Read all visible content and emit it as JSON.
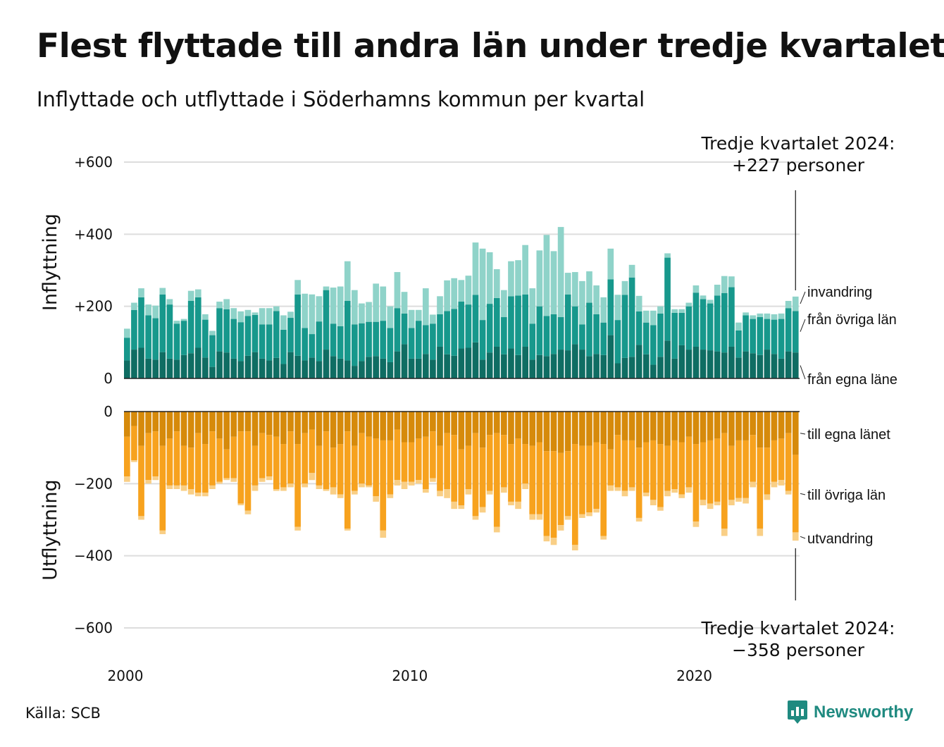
{
  "header": {
    "title": "Flest flyttade till andra län under tredje kvartalet",
    "subtitle": "Inflyttade och utflyttade i Söderhamns kommun per kvartal"
  },
  "footer": {
    "source": "Källa: SCB",
    "brand": "Newsworthy"
  },
  "colors": {
    "in_own": "#0f6d63",
    "in_other": "#17988c",
    "in_immigration": "#8fd3c9",
    "out_own": "#d68a0b",
    "out_other": "#f7a21e",
    "out_emigration": "#f9cf86",
    "brand": "#1f8a80"
  },
  "chart_data": {
    "type": "bar",
    "stacked": true,
    "start_year": 2000,
    "quarters_per_year": 4,
    "x_ticks": [
      "2000",
      "2010",
      "2020"
    ],
    "in_panel": {
      "ylabel": "Inflyttning",
      "ylim": [
        0,
        600
      ],
      "y_ticks": [
        "0",
        "+200",
        "+400",
        "+600"
      ],
      "callout": [
        "Tredje kvartalet 2024:",
        "+227 personer"
      ],
      "series": [
        {
          "name": "från egna läne",
          "values": [
            50,
            80,
            85,
            55,
            52,
            73,
            55,
            52,
            65,
            70,
            85,
            58,
            32,
            75,
            72,
            55,
            48,
            63,
            73,
            55,
            50,
            57,
            40,
            73,
            63,
            50,
            58,
            48,
            80,
            62,
            55,
            50,
            35,
            48,
            60,
            62,
            55,
            45,
            75,
            95,
            55,
            55,
            68,
            52,
            88,
            67,
            63,
            83,
            85,
            100,
            52,
            72,
            88,
            67,
            83,
            65,
            88,
            52,
            65,
            62,
            68,
            80,
            78,
            95,
            80,
            62,
            68,
            65,
            120,
            42,
            57,
            60,
            93,
            67,
            38,
            60,
            105,
            55,
            92,
            80,
            88,
            80,
            78,
            75,
            72,
            88,
            58,
            75,
            70,
            65,
            80,
            68,
            55,
            75,
            72
          ]
        },
        {
          "name": "från övriga län",
          "values": [
            63,
            110,
            140,
            120,
            115,
            160,
            150,
            100,
            95,
            145,
            140,
            105,
            88,
            120,
            120,
            110,
            108,
            110,
            103,
            95,
            100,
            130,
            95,
            95,
            170,
            90,
            65,
            110,
            165,
            90,
            90,
            165,
            115,
            105,
            97,
            95,
            105,
            95,
            120,
            85,
            85,
            105,
            80,
            100,
            90,
            120,
            130,
            130,
            120,
            132,
            110,
            135,
            135,
            103,
            145,
            165,
            145,
            100,
            135,
            111,
            110,
            90,
            155,
            105,
            70,
            148,
            110,
            90,
            155,
            120,
            175,
            220,
            93,
            88,
            110,
            120,
            230,
            127,
            90,
            120,
            150,
            140,
            130,
            155,
            165,
            165,
            75,
            100,
            95,
            105,
            85,
            95,
            110,
            120,
            115
          ]
        },
        {
          "name": "invandring",
          "values": [
            25,
            20,
            25,
            30,
            35,
            18,
            15,
            8,
            5,
            28,
            22,
            15,
            12,
            18,
            28,
            30,
            30,
            17,
            7,
            45,
            45,
            13,
            40,
            17,
            40,
            95,
            110,
            70,
            10,
            100,
            110,
            110,
            95,
            55,
            55,
            106,
            95,
            60,
            100,
            60,
            50,
            30,
            102,
            25,
            50,
            85,
            85,
            60,
            80,
            145,
            198,
            143,
            80,
            75,
            97,
            98,
            137,
            98,
            155,
            225,
            175,
            250,
            60,
            95,
            120,
            87,
            80,
            70,
            85,
            70,
            38,
            35,
            43,
            33,
            40,
            20,
            12,
            10,
            10,
            10,
            20,
            10,
            10,
            30,
            47,
            30,
            22,
            8,
            10,
            10,
            15,
            15,
            15,
            20,
            40
          ]
        }
      ]
    },
    "out_panel": {
      "ylabel": "Utflyttning",
      "ylim": [
        -600,
        0
      ],
      "y_ticks": [
        "0",
        "−200",
        "−400",
        "−600"
      ],
      "callout": [
        "Tredje kvartalet 2024:",
        "−358 personer"
      ],
      "series": [
        {
          "name": "till egna länet",
          "values": [
            -70,
            -40,
            -95,
            -60,
            -55,
            -95,
            -75,
            -55,
            -95,
            -100,
            -60,
            -90,
            -55,
            -75,
            -105,
            -70,
            -55,
            -55,
            -95,
            -60,
            -65,
            -70,
            -90,
            -55,
            -90,
            -60,
            -50,
            -95,
            -55,
            -100,
            -90,
            -55,
            -95,
            -60,
            -70,
            -75,
            -80,
            -80,
            -50,
            -85,
            -85,
            -75,
            -70,
            -55,
            -95,
            -60,
            -65,
            -105,
            -95,
            -60,
            -100,
            -65,
            -60,
            -65,
            -90,
            -75,
            -90,
            -95,
            -85,
            -110,
            -110,
            -115,
            -110,
            -90,
            -95,
            -95,
            -85,
            -90,
            -105,
            -65,
            -80,
            -80,
            -100,
            -85,
            -80,
            -90,
            -95,
            -80,
            -85,
            -70,
            -90,
            -85,
            -80,
            -75,
            -60,
            -95,
            -80,
            -80,
            -65,
            -100,
            -100,
            -80,
            -75,
            -60,
            -120
          ]
        },
        {
          "name": "till övriga län",
          "values": [
            -110,
            -95,
            -195,
            -130,
            -125,
            -235,
            -130,
            -150,
            -110,
            -115,
            -165,
            -135,
            -150,
            -120,
            -80,
            -115,
            -200,
            -220,
            -110,
            -125,
            -115,
            -145,
            -120,
            -145,
            -230,
            -140,
            -120,
            -110,
            -160,
            -110,
            -140,
            -270,
            -125,
            -140,
            -135,
            -160,
            -250,
            -150,
            -140,
            -110,
            -110,
            -115,
            -145,
            -130,
            -125,
            -155,
            -185,
            -155,
            -120,
            -230,
            -165,
            -155,
            -260,
            -145,
            -160,
            -175,
            -110,
            -190,
            -200,
            -235,
            -240,
            -200,
            -180,
            -280,
            -190,
            -185,
            -185,
            -255,
            -100,
            -145,
            -140,
            -130,
            -195,
            -140,
            -165,
            -175,
            -125,
            -135,
            -145,
            -140,
            -215,
            -160,
            -175,
            -175,
            -265,
            -150,
            -160,
            -160,
            -130,
            -225,
            -130,
            -115,
            -115,
            -160,
            -215
          ]
        },
        {
          "name": "utvandring",
          "values": [
            -15,
            -5,
            -10,
            -10,
            -10,
            -10,
            -10,
            -10,
            -15,
            -15,
            -10,
            -10,
            -10,
            -5,
            -5,
            -10,
            -5,
            -10,
            -15,
            -10,
            -10,
            -5,
            -10,
            -10,
            -10,
            -10,
            -20,
            -10,
            -5,
            -20,
            -10,
            -5,
            -10,
            -10,
            -5,
            -15,
            -20,
            -10,
            -15,
            -20,
            -10,
            -10,
            -10,
            -10,
            -15,
            -25,
            -20,
            -10,
            -15,
            -10,
            -15,
            -10,
            -15,
            -15,
            -10,
            -20,
            -15,
            -15,
            -15,
            -15,
            -20,
            -15,
            -10,
            -15,
            -10,
            -10,
            -10,
            -10,
            -15,
            -10,
            -15,
            -10,
            -10,
            -10,
            -15,
            -10,
            -15,
            -10,
            -10,
            -15,
            -15,
            -15,
            -15,
            -10,
            -20,
            -15,
            -10,
            -15,
            -15,
            -20,
            -15,
            -15,
            -15,
            -10,
            -23
          ]
        }
      ]
    }
  }
}
